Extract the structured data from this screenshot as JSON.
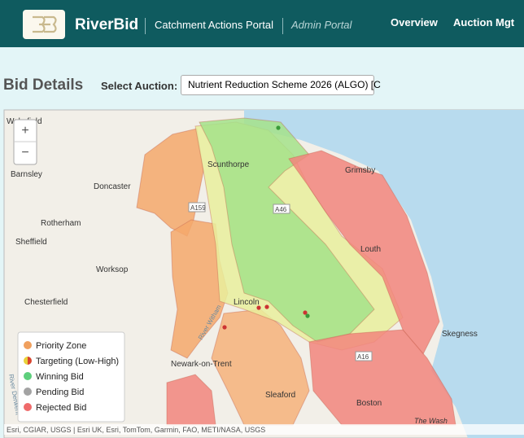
{
  "header": {
    "brand": "RiverBid",
    "portal": "Catchment Actions Portal",
    "subtitle": "Admin Portal",
    "nav": [
      "Overview",
      "Auction Mgt"
    ]
  },
  "toolbar": {
    "title": "Bid Details",
    "select_label": "Select Auction:",
    "selected": "Nutrient Reduction Scheme 2026 (ALGO) [C"
  },
  "map": {
    "zoom": [
      "+",
      "−"
    ],
    "places": [
      "Wakefield",
      "Barnsley",
      "Doncaster",
      "Scunthorpe",
      "Grimsby",
      "Rotherham",
      "Sheffield",
      "Worksop",
      "Louth",
      "Chesterfield",
      "Lincoln",
      "Skegness",
      "Newark-on-Trent",
      "Sleaford",
      "Boston",
      "The Wash"
    ],
    "roads": [
      "A159",
      "A46",
      "A16"
    ],
    "rivers": [
      "River Witham",
      "River Derwent"
    ],
    "legend": [
      "Priority Zone",
      "Targeting (Low-High)",
      "Winning Bid",
      "Pending Bid",
      "Rejected Bid"
    ],
    "attribution": "Esri, CGIAR, USGS | Esri UK, Esri, TomTom, Garmin, FAO, METI/NASA, USGS"
  }
}
